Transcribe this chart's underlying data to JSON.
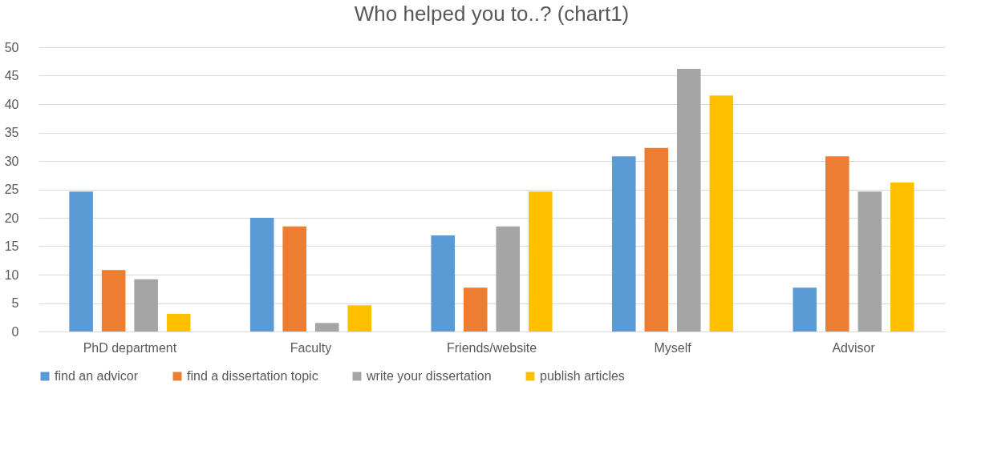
{
  "chart_data": {
    "type": "bar",
    "title": "Who helped you to..? (chart1)",
    "categories": [
      "PhD department",
      "Faculty",
      "Friends/website",
      "Myself",
      "Advisor"
    ],
    "series": [
      {
        "name": "find an advicor",
        "color": "#5b9bd5",
        "values": [
          24.6,
          20.0,
          16.9,
          30.8,
          7.7
        ]
      },
      {
        "name": "find a dissertation topic",
        "color": "#ed7d31",
        "values": [
          10.8,
          18.5,
          7.7,
          32.3,
          30.8
        ]
      },
      {
        "name": "write your dissertation",
        "color": "#a5a5a5",
        "values": [
          9.2,
          1.5,
          18.5,
          46.2,
          24.6
        ]
      },
      {
        "name": "publish articles",
        "color": "#ffc000",
        "values": [
          3.1,
          4.6,
          24.6,
          41.5,
          26.2
        ]
      }
    ],
    "ylim": [
      0,
      50
    ],
    "yticks": [
      0,
      5,
      10,
      15,
      20,
      25,
      30,
      35,
      40,
      45,
      50
    ],
    "grid": "y",
    "legend": "bottom"
  }
}
